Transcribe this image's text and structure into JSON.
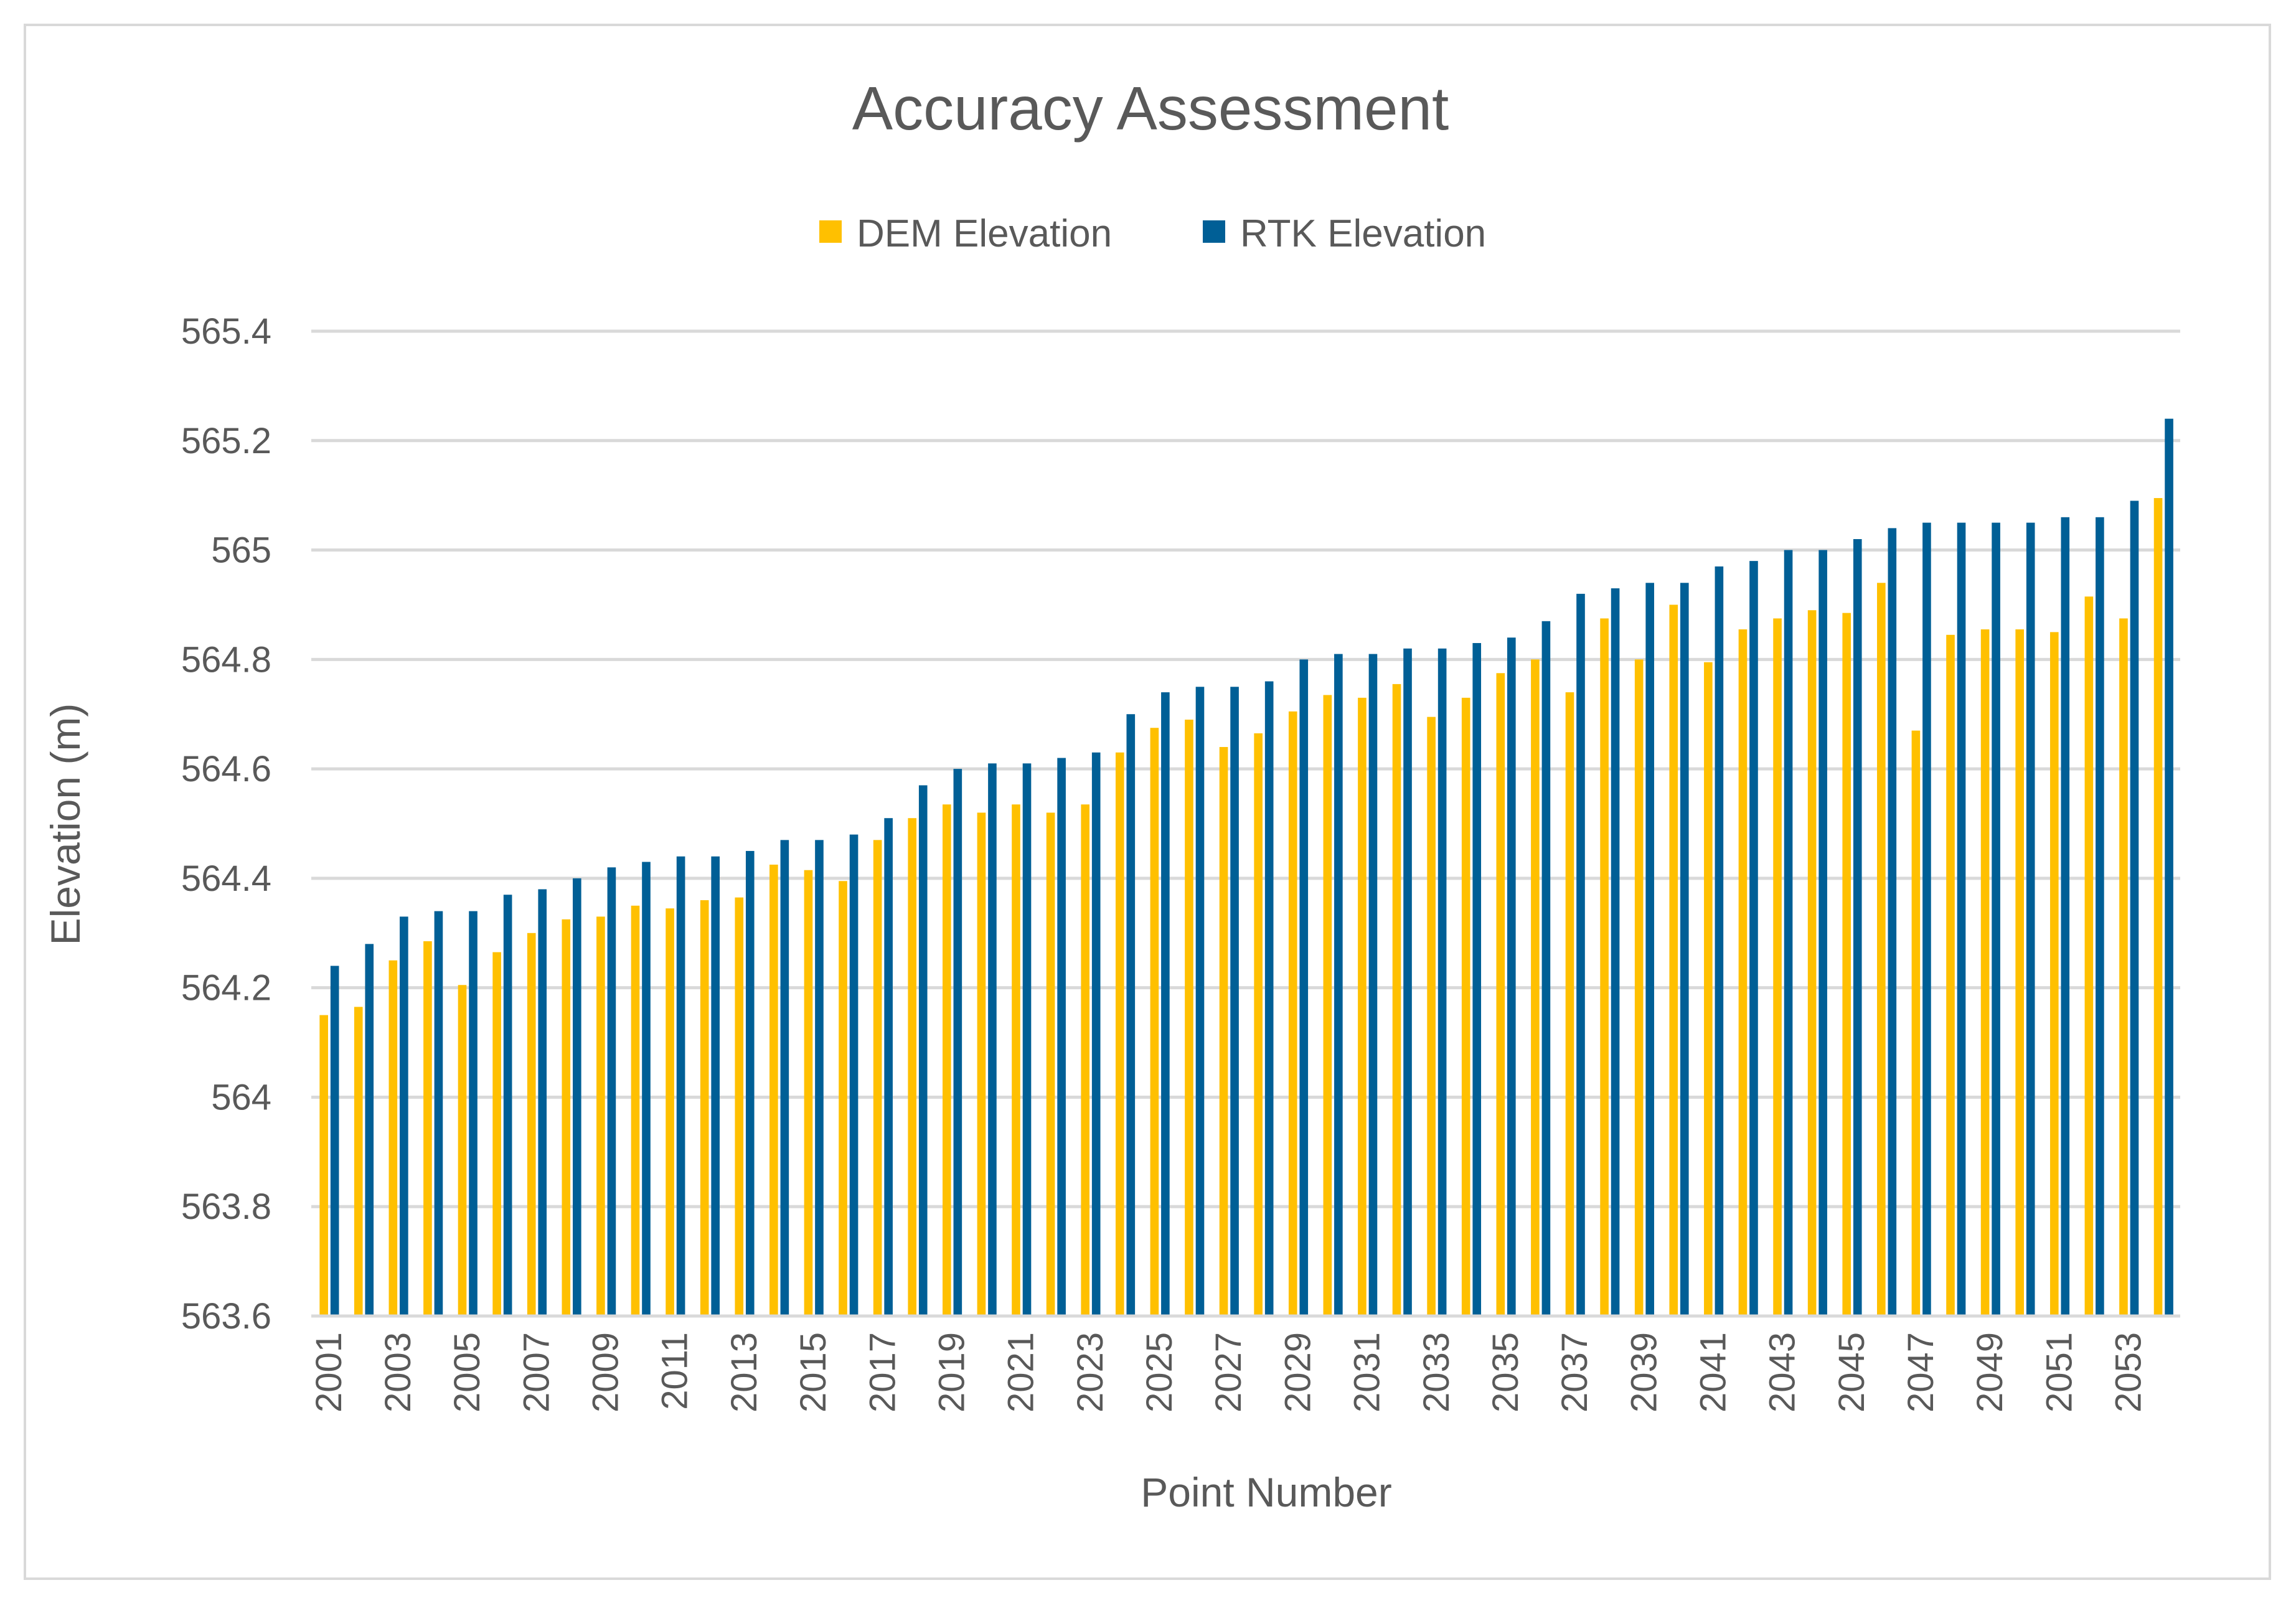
{
  "chart_data": {
    "type": "bar",
    "title": "Accuracy Assessment",
    "xlabel": "Point Number",
    "ylabel": "Elevation (m)",
    "ylim": [
      563.6,
      565.4
    ],
    "yticks": [
      "563.6",
      "563.8",
      "564",
      "564.2",
      "564.4",
      "564.6",
      "564.8",
      "565",
      "565.2",
      "565.4"
    ],
    "categories": [
      "2001",
      "2002",
      "2003",
      "2004",
      "2005",
      "2006",
      "2007",
      "2008",
      "2009",
      "2010",
      "2011",
      "2012",
      "2013",
      "2014",
      "2015",
      "2016",
      "2017",
      "2018",
      "2019",
      "2020",
      "2021",
      "2022",
      "2023",
      "2024",
      "2025",
      "2026",
      "2027",
      "2028",
      "2029",
      "2030",
      "2031",
      "2032",
      "2033",
      "2034",
      "2035",
      "2036",
      "2037",
      "2038",
      "2039",
      "2040",
      "2041",
      "2042",
      "2043",
      "2044",
      "2045",
      "2046",
      "2047",
      "2048",
      "2049",
      "2050",
      "2051",
      "2052",
      "2053",
      "2054"
    ],
    "xtick_labels": [
      "2001",
      "2003",
      "2005",
      "2007",
      "2009",
      "2011",
      "2013",
      "2015",
      "2017",
      "2019",
      "2021",
      "2023",
      "2025",
      "2027",
      "2029",
      "2031",
      "2033",
      "2035",
      "2037",
      "2039",
      "2041",
      "2043",
      "2045",
      "2047",
      "2049",
      "2051",
      "2053"
    ],
    "series": [
      {
        "name": "DEM Elevation",
        "color": "#FFC000",
        "values": [
          564.15,
          564.165,
          564.25,
          564.285,
          564.205,
          564.265,
          564.3,
          564.325,
          564.33,
          564.35,
          564.345,
          564.36,
          564.365,
          564.425,
          564.415,
          564.395,
          564.47,
          564.51,
          564.535,
          564.52,
          564.535,
          564.52,
          564.535,
          564.63,
          564.675,
          564.69,
          564.64,
          564.665,
          564.705,
          564.735,
          564.73,
          564.755,
          564.695,
          564.73,
          564.775,
          564.8,
          564.74,
          564.875,
          564.8,
          564.9,
          564.795,
          564.855,
          564.875,
          564.89,
          564.885,
          564.94,
          564.67,
          564.845,
          564.855,
          564.855,
          564.85,
          564.915,
          564.875,
          565.095
        ]
      },
      {
        "name": "RTK Elevation",
        "color": "#005F96",
        "values": [
          564.24,
          564.28,
          564.33,
          564.34,
          564.34,
          564.37,
          564.38,
          564.4,
          564.42,
          564.43,
          564.44,
          564.44,
          564.45,
          564.47,
          564.47,
          564.48,
          564.51,
          564.57,
          564.6,
          564.61,
          564.61,
          564.62,
          564.63,
          564.7,
          564.74,
          564.75,
          564.75,
          564.76,
          564.8,
          564.81,
          564.81,
          564.82,
          564.82,
          564.83,
          564.84,
          564.87,
          564.92,
          564.93,
          564.94,
          564.94,
          564.97,
          564.98,
          565.0,
          565.0,
          565.02,
          565.04,
          565.05,
          565.05,
          565.05,
          565.05,
          565.06,
          565.06,
          565.09,
          565.24
        ]
      }
    ],
    "legend": "top",
    "grid": true
  }
}
